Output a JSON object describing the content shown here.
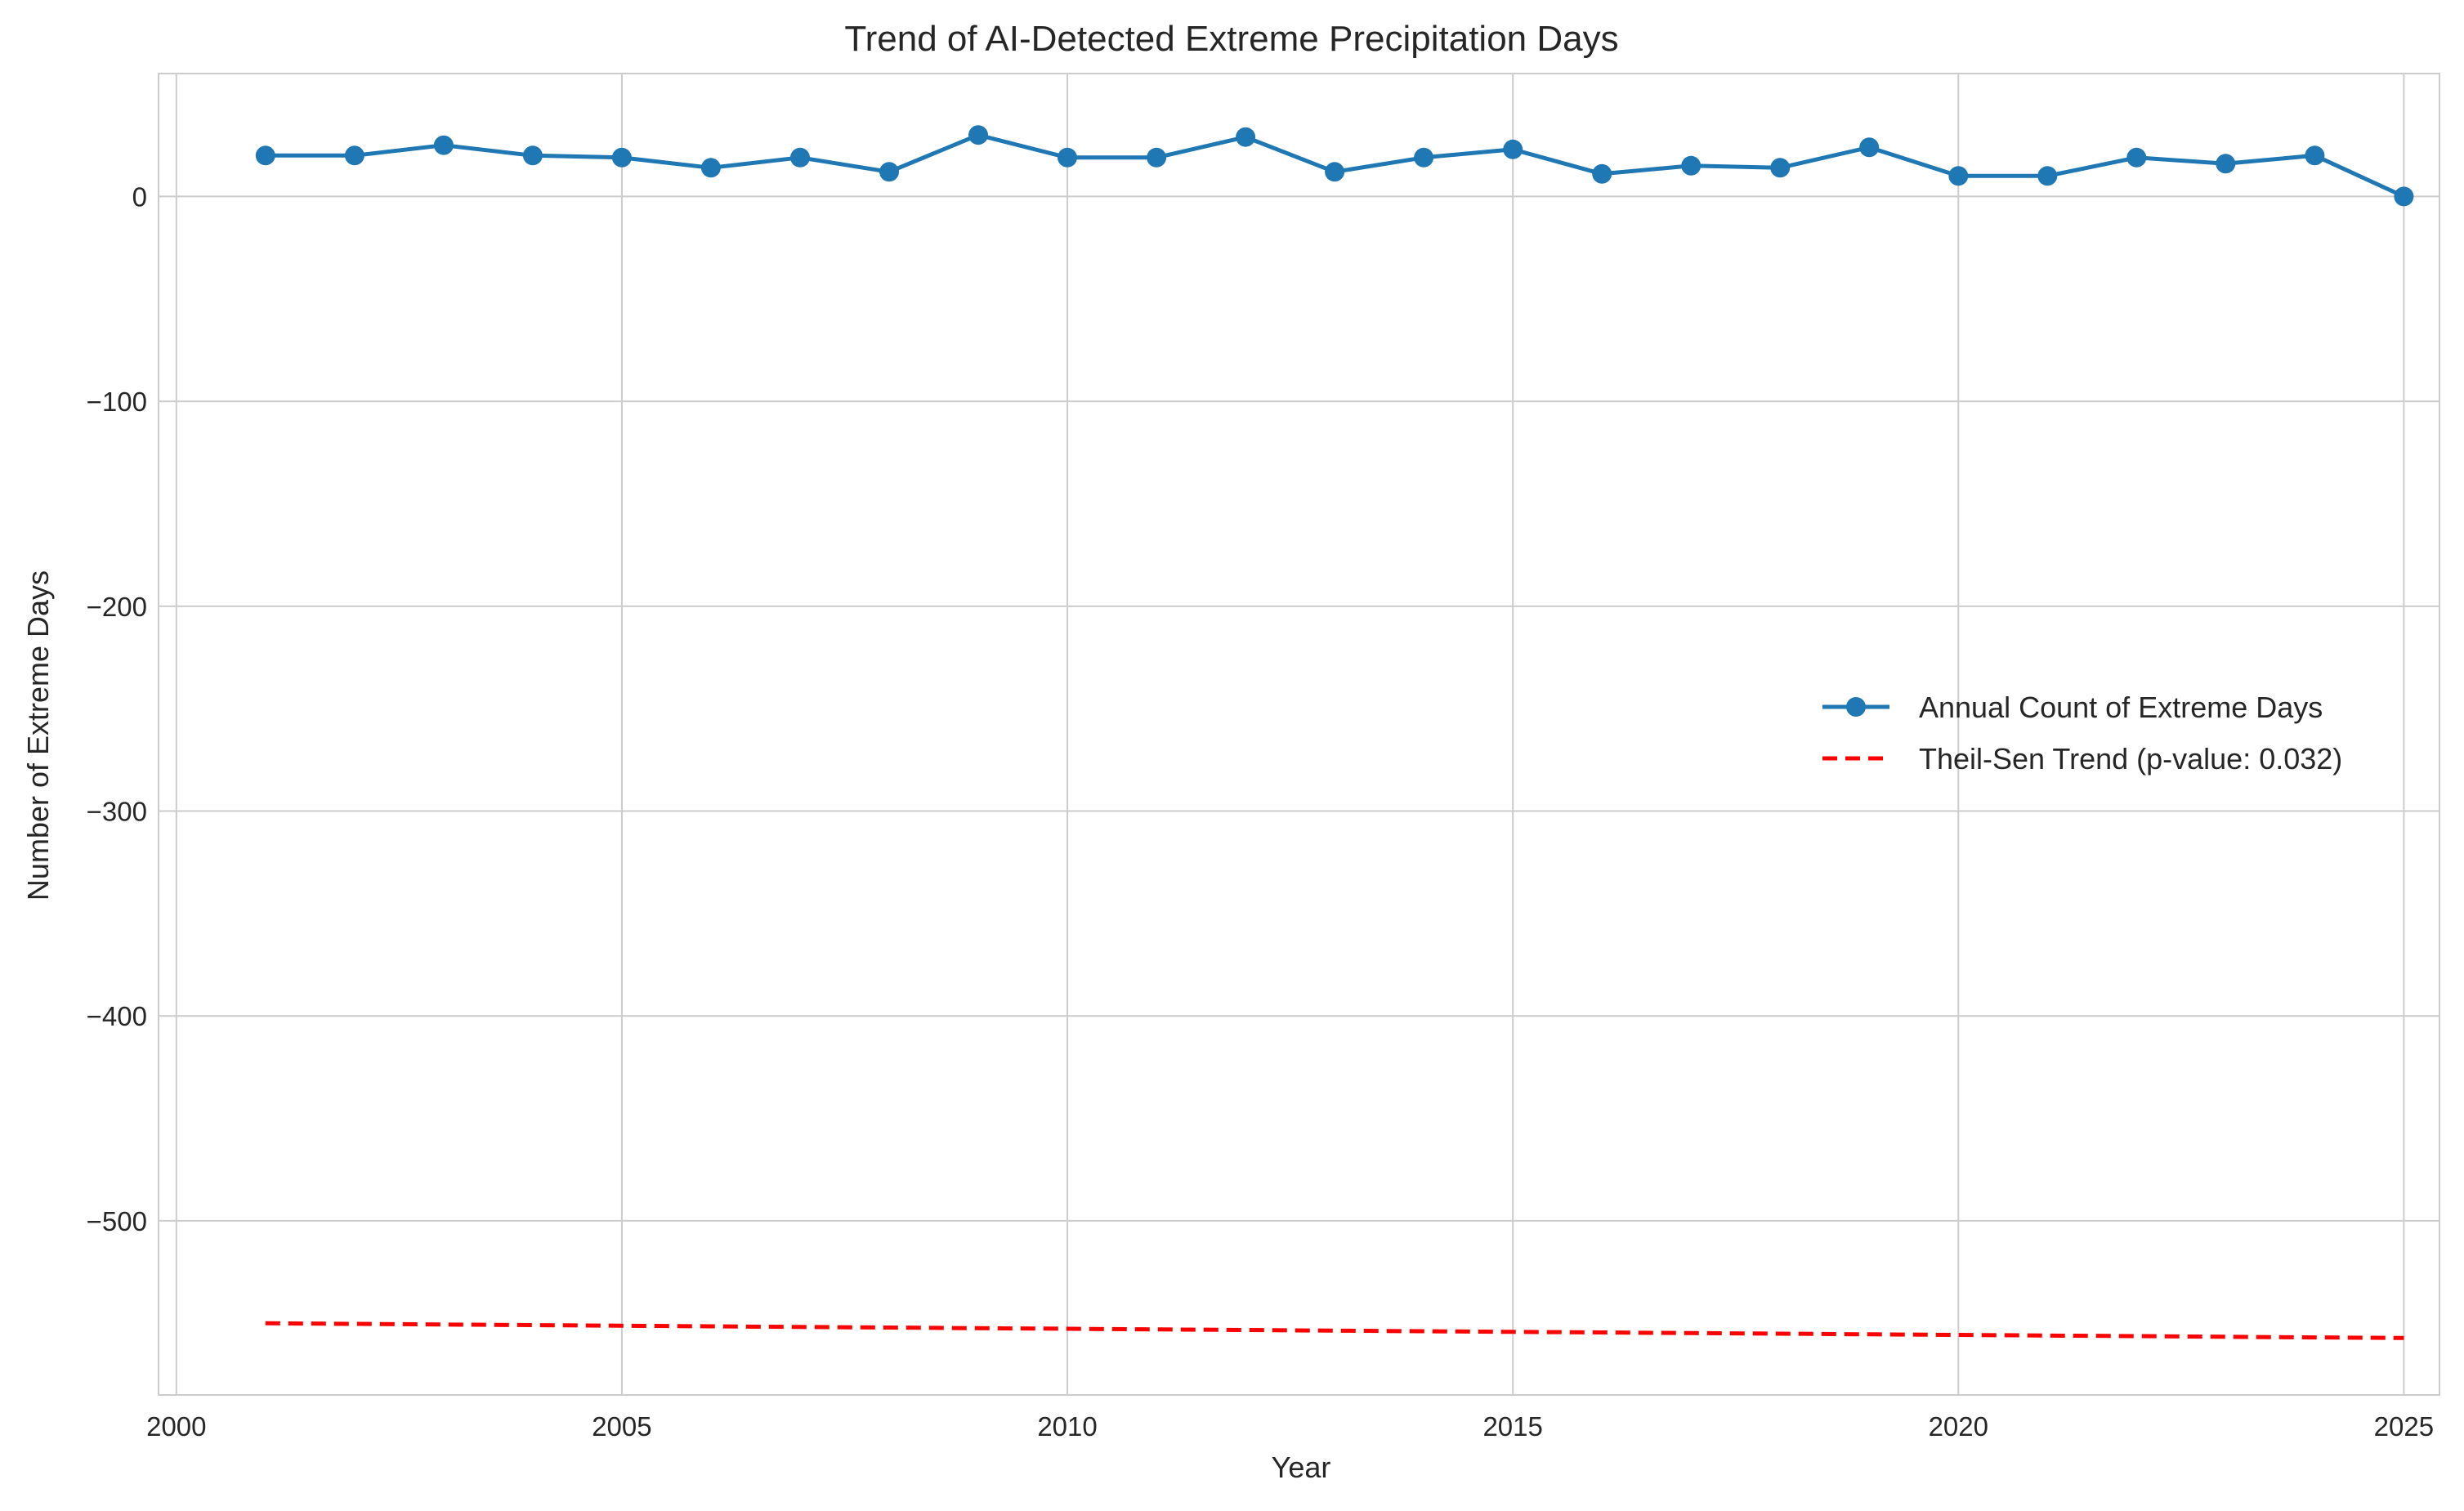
{
  "chart_data": {
    "type": "line",
    "title": "Trend of AI-Detected Extreme Precipitation Days",
    "xlabel": "Year",
    "ylabel": "Number of Extreme Days",
    "xlim": [
      1999.8,
      2025.4
    ],
    "ylim": [
      -585,
      60
    ],
    "xticks": [
      2000,
      2005,
      2010,
      2015,
      2020,
      2025
    ],
    "yticks": [
      0,
      -100,
      -200,
      -300,
      -400,
      -500
    ],
    "ytick_labels": [
      "0",
      "−100",
      "−200",
      "−300",
      "−400",
      "−500"
    ],
    "grid": true,
    "legend_position": "center-right",
    "x": [
      2001,
      2002,
      2003,
      2004,
      2005,
      2006,
      2007,
      2008,
      2009,
      2010,
      2011,
      2012,
      2013,
      2014,
      2015,
      2016,
      2017,
      2018,
      2019,
      2020,
      2021,
      2022,
      2023,
      2024,
      2025
    ],
    "series": [
      {
        "name": "Annual Count of Extreme Days",
        "style": "solid-markers",
        "color": "#1f77b4",
        "values": [
          20,
          20,
          25,
          20,
          19,
          14,
          19,
          12,
          30,
          19,
          19,
          29,
          12,
          19,
          23,
          11,
          15,
          14,
          24,
          10,
          10,
          19,
          16,
          20,
          0
        ]
      },
      {
        "name": "Theil-Sen Trend (p-value: 0.032)",
        "style": "dashed",
        "color": "#ff0000",
        "values": [
          -550,
          -550.3,
          -550.6,
          -550.9,
          -551.2,
          -551.5,
          -551.8,
          -552.1,
          -552.4,
          -552.7,
          -553,
          -553.3,
          -553.6,
          -553.9,
          -554.2,
          -554.5,
          -554.8,
          -555.1,
          -555.4,
          -555.7,
          -556,
          -556.3,
          -556.6,
          -556.9,
          -557.2
        ]
      }
    ]
  }
}
